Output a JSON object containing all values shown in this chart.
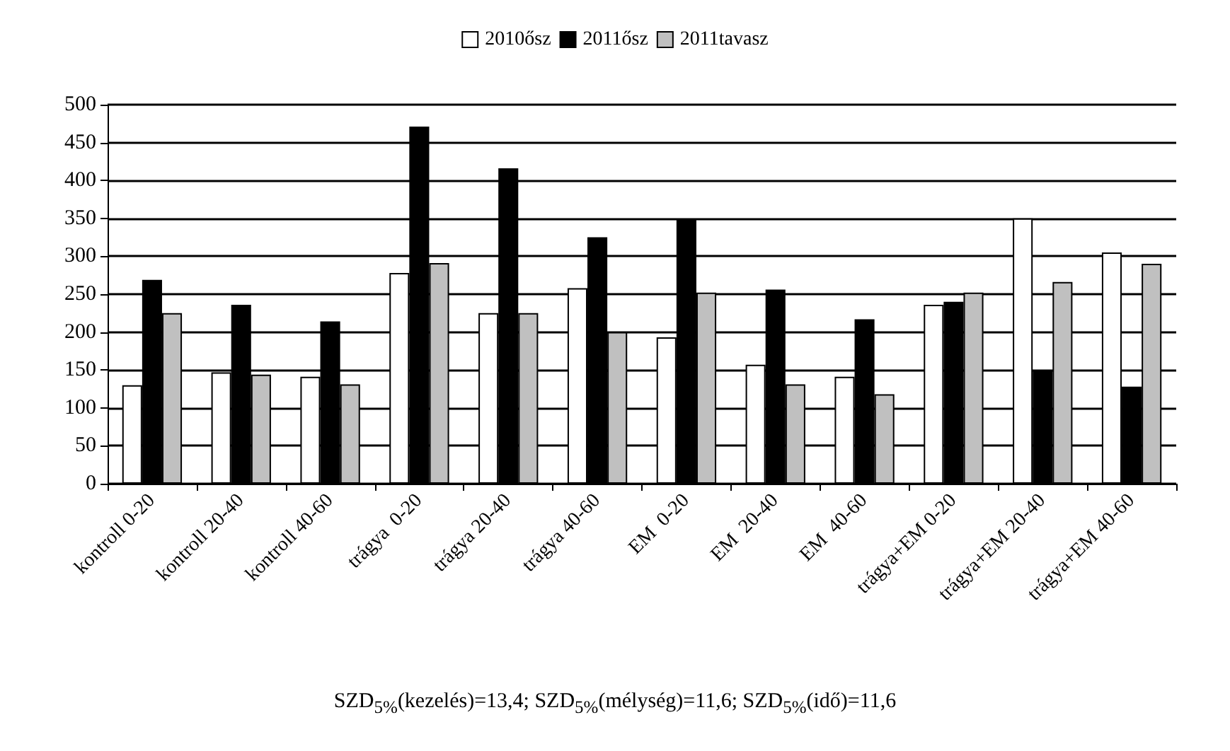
{
  "chart_data": {
    "type": "bar",
    "categories": [
      "kontroll 0-20",
      "kontroll 20-40",
      "kontroll 40-60",
      "trágya  0-20",
      "trágya 20-40",
      "trágya 40-60",
      "EM  0-20",
      "EM  20-40",
      "EM  40-60",
      "trágya+EM 0-20",
      "trágya+EM 20-40",
      "trágya+EM 40-60"
    ],
    "series": [
      {
        "name": "2010ősz",
        "color": "#ffffff",
        "values": [
          130,
          147,
          141,
          278,
          225,
          258,
          193,
          157,
          141,
          236,
          350,
          305
        ]
      },
      {
        "name": "2011ősz",
        "color": "#000000",
        "values": [
          269,
          236,
          214,
          471,
          416,
          325,
          348,
          256,
          217,
          240,
          150,
          128
        ]
      },
      {
        "name": "2011tavasz",
        "color": "#c0c0c0",
        "values": [
          225,
          144,
          131,
          291,
          225,
          200,
          252,
          131,
          118,
          252,
          266,
          290
        ]
      }
    ],
    "ylim": [
      0,
      500
    ],
    "yticks": [
      0,
      50,
      100,
      150,
      200,
      250,
      300,
      350,
      400,
      450,
      500
    ],
    "grid": "y",
    "legend": "top",
    "annotations": [
      "SZD$_{5%}$(kezelés)=13,4; SZD$_{5%}$(mélység)=11,6; SZD$_{5%}$(idő)=11,6"
    ]
  }
}
